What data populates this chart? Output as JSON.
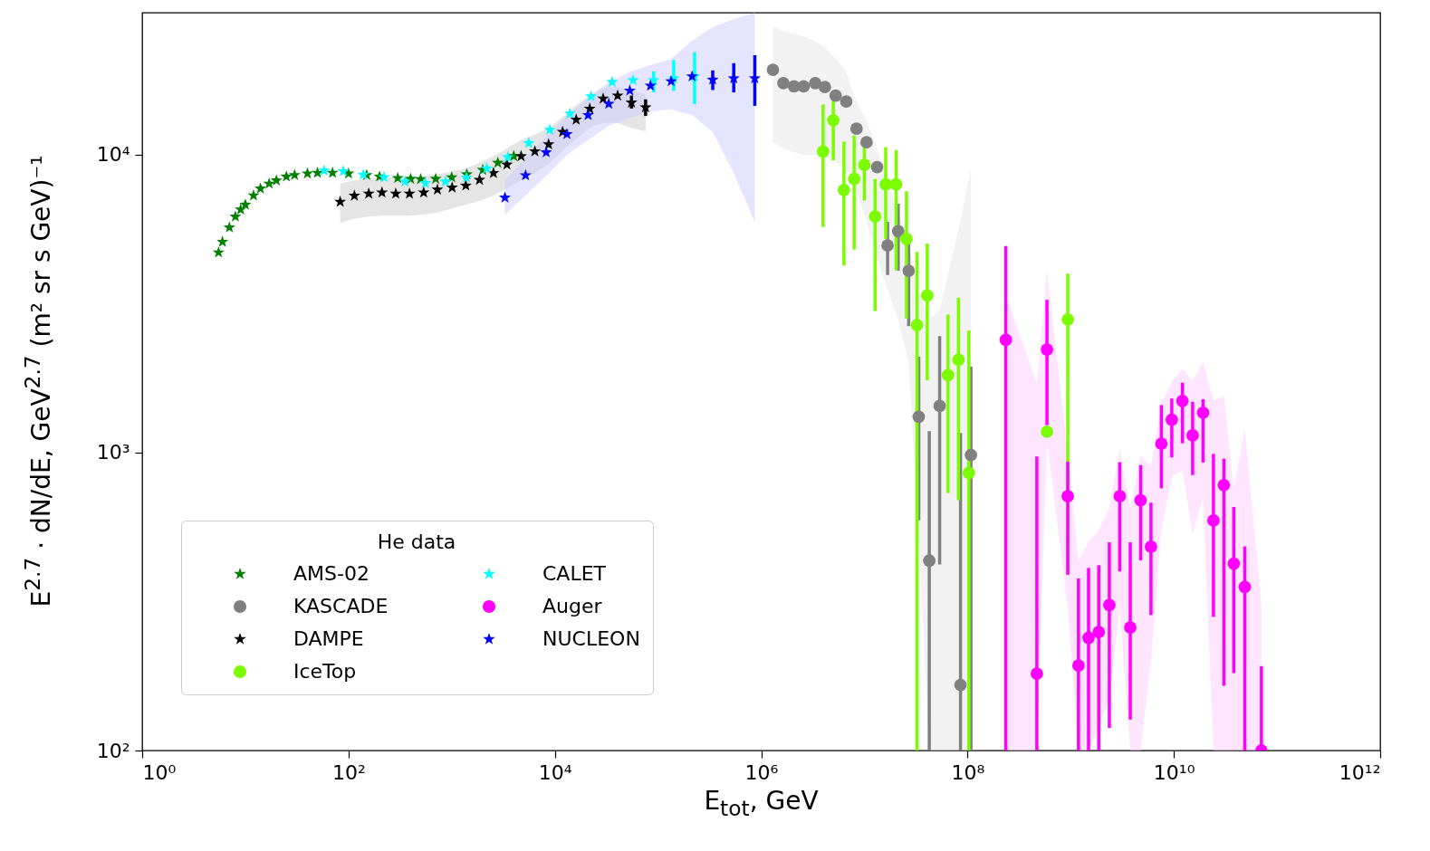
{
  "chart_data": {
    "type": "scatter",
    "xlabel": "E$_{tot}$, GeV",
    "ylabel": "E$^{2.7}$ · dN/dE, GeV$^{2.7}$ (m² sr s GeV)⁻¹",
    "legend_title": "He data",
    "legend": "bottom left",
    "log": "xy",
    "xlim": [
      1,
      1000000000000
    ],
    "ylim": [
      100,
      30000
    ],
    "xticks": [
      {
        "value": 1,
        "label": "10⁰"
      },
      {
        "value": 100,
        "label": "10²"
      },
      {
        "value": 10000,
        "label": "10⁴"
      },
      {
        "value": 1000000,
        "label": "10⁶"
      },
      {
        "value": 100000000,
        "label": "10⁸"
      },
      {
        "value": 10000000000,
        "label": "10¹⁰"
      },
      {
        "value": 1000000000000,
        "label": "10¹²"
      }
    ],
    "yticks": [
      {
        "value": 100,
        "label": "10²"
      },
      {
        "value": 1000,
        "label": "10³"
      },
      {
        "value": 10000,
        "label": "10⁴"
      }
    ],
    "series": [
      {
        "name": "AMS-02",
        "color": "#008000",
        "marker": "star",
        "x": [
          5.5,
          6,
          7,
          8,
          9,
          10,
          12,
          14,
          17,
          20,
          25,
          30,
          40,
          50,
          70,
          100,
          150,
          200,
          300,
          400,
          500,
          700,
          1000,
          1400,
          2000,
          2800,
          4000
        ],
        "values": [
          4700,
          5100,
          5700,
          6200,
          6550,
          6800,
          7300,
          7700,
          8000,
          8200,
          8450,
          8550,
          8650,
          8700,
          8700,
          8650,
          8550,
          8450,
          8350,
          8300,
          8280,
          8300,
          8400,
          8600,
          8900,
          9400,
          9900
        ]
      },
      {
        "name": "DAMPE",
        "color": "#000000",
        "marker": "star",
        "x": [
          83,
          114,
          157,
          211,
          287,
          390,
          535,
          727,
          1010,
          1370,
          1860,
          2540,
          3430,
          4710,
          6400,
          8700,
          11900,
          16100,
          21800,
          29400,
          40600,
          55300,
          75800
        ],
        "values": [
          6950,
          7290,
          7400,
          7470,
          7400,
          7400,
          7470,
          7640,
          7760,
          7880,
          8240,
          8680,
          9270,
          9890,
          10270,
          10840,
          11940,
          13120,
          14270,
          15440,
          15790,
          14970,
          14430
        ],
        "errors": [
          null,
          null,
          null,
          null,
          null,
          null,
          null,
          null,
          null,
          null,
          null,
          null,
          null,
          null,
          null,
          null,
          null,
          null,
          null,
          null,
          null,
          [
            14300,
            15800
          ],
          [
            13500,
            15350
          ]
        ],
        "lower": [
          5900,
          6100,
          6200,
          6250,
          6250,
          6250,
          6300,
          6400,
          6600,
          6800,
          7000,
          7300,
          7700,
          8200,
          8700,
          9300,
          10300,
          11300,
          12300,
          12800,
          12800,
          12300,
          12000
        ],
        "upper": [
          8000,
          8200,
          8300,
          8400,
          8400,
          8400,
          8500,
          8600,
          8800,
          9000,
          9400,
          9900,
          10500,
          11200,
          11700,
          12300,
          13400,
          14700,
          15800,
          16800,
          16900,
          16500,
          16000
        ]
      },
      {
        "name": "CALET",
        "color": "#00ffff",
        "marker": "star",
        "x": [
          58,
          89,
          139,
          221,
          353,
          555,
          870,
          1390,
          2190,
          3500,
          5590,
          8930,
          14000,
          22400,
          35900,
          57300,
          90800,
          142000,
          226000
        ],
        "values": [
          8850,
          8800,
          8570,
          8410,
          8130,
          8030,
          8130,
          8380,
          9000,
          9810,
          10950,
          12130,
          13750,
          15700,
          17550,
          17800,
          17800,
          18050,
          18330
        ],
        "errors": [
          null,
          null,
          null,
          null,
          null,
          null,
          null,
          null,
          null,
          null,
          null,
          null,
          null,
          null,
          null,
          null,
          [
            16200,
            19050
          ],
          [
            16400,
            20800
          ],
          [
            14800,
            22100
          ]
        ]
      },
      {
        "name": "NUCLEON",
        "color": "#0000ff",
        "marker": "star",
        "x": [
          3280,
          5200,
          8240,
          13100,
          21000,
          33300,
          53300,
          84500,
          134000,
          214000,
          339000,
          542000,
          867000
        ],
        "values": [
          7180,
          8530,
          10190,
          11730,
          13580,
          14830,
          16420,
          17050,
          17650,
          18330,
          17870,
          18050,
          18050
        ],
        "errors": [
          null,
          null,
          null,
          null,
          null,
          null,
          null,
          null,
          null,
          null,
          [
            16500,
            19200
          ],
          [
            16200,
            20300
          ],
          [
            14600,
            21600
          ]
        ],
        "lower": [
          6300,
          7300,
          8500,
          10000,
          11200,
          12500,
          13300,
          14000,
          14200,
          13600,
          11900,
          8700,
          5950
        ],
        "upper": [
          8200,
          9800,
          11500,
          13500,
          15500,
          17500,
          19000,
          20000,
          21000,
          24200,
          26800,
          28500,
          30000
        ]
      },
      {
        "name": "KASCADE",
        "color": "#808080",
        "marker": "circle",
        "x": [
          1300000,
          1640000,
          2080000,
          2580000,
          3340000,
          4140000,
          5270000,
          6680000,
          8400000,
          10500000,
          13300000,
          16800000,
          21300000,
          26900000,
          33700000,
          42600000,
          53700000,
          85500000,
          108000000
        ],
        "values": [
          19300,
          17400,
          16980,
          16980,
          17400,
          16880,
          15790,
          15100,
          12240,
          11010,
          9090,
          4960,
          5540,
          4080,
          1320,
          434,
          1435,
          166,
          982
        ],
        "errors": [
          null,
          null,
          null,
          null,
          null,
          null,
          null,
          null,
          null,
          null,
          null,
          [
            3950,
            5960
          ],
          [
            4080,
            6850
          ],
          [
            2660,
            5400
          ],
          [
            593,
            2100
          ],
          [
            100,
            1180
          ],
          [
            421,
            2460
          ],
          [
            100,
            1164
          ],
          [
            100,
            1945
          ]
        ],
        "lower": [
          11000,
          10500,
          10200,
          10000,
          10000,
          9800,
          9500,
          9000,
          7500,
          6000,
          4500,
          3500,
          2800,
          2000,
          500,
          100,
          100,
          100,
          100
        ],
        "upper": [
          27000,
          26000,
          25500,
          25000,
          24000,
          23000,
          21000,
          19000,
          15000,
          13000,
          10500,
          8000,
          6500,
          5000,
          3500,
          2800,
          3000,
          6000,
          9000
        ]
      },
      {
        "name": "IceTop",
        "color": "#7cfc00",
        "marker": "circle",
        "x": [
          3980000,
          5000000,
          6340000,
          7960000,
          10000000,
          12700000,
          16100000,
          20300000,
          25600000,
          32400000,
          40700000,
          64700000,
          81700000,
          103000000,
          589000000,
          938000000
        ],
        "values": [
          10260,
          13060,
          7620,
          8300,
          9250,
          6210,
          7960,
          7960,
          5220,
          2680,
          3370,
          1820,
          2050,
          855,
          1175,
          2800
        ],
        "errors": [
          [
            5720,
            14750
          ],
          [
            9590,
            15350
          ],
          [
            4250,
            11070
          ],
          [
            4810,
            11600
          ],
          [
            7030,
            10700
          ],
          [
            2990,
            8290
          ],
          [
            5220,
            10600
          ],
          [
            4100,
            10380
          ],
          [
            2820,
            7540
          ],
          [
            100,
            4720
          ],
          [
            1750,
            5030
          ],
          [
            731,
            2910
          ],
          [
            692,
            3310
          ],
          [
            100,
            2570
          ],
          null,
          [
            389,
            3990
          ]
        ]
      },
      {
        "name": "Auger",
        "color": "#ff00ff",
        "marker": "circle",
        "x": [
          235000000,
          470000000,
          589000000,
          937000000,
          1190000000,
          1490000000,
          1870000000,
          2370000000,
          2990000000,
          3780000000,
          4760000000,
          6000000000,
          7570000000,
          9550000000,
          12100000000,
          15200000000,
          19200000000,
          24200000000,
          30500000000,
          38100000000,
          48700000000,
          70600000000
        ],
        "values": [
          2390,
          181,
          2220,
          714,
          193,
          239,
          250,
          308,
          714,
          259,
          692,
          483,
          1072,
          1289,
          1492,
          1143,
          1362,
          592,
          778,
          424,
          354,
          100
        ],
        "errors": [
          [
            100,
            4940
          ],
          [
            100,
            970
          ],
          [
            1237,
            3260
          ],
          [
            389,
            933
          ],
          [
            100,
            378
          ],
          [
            100,
            410
          ],
          [
            100,
            419
          ],
          [
            119,
            500
          ],
          [
            399,
            929
          ],
          [
            127,
            500
          ],
          [
            435,
            908
          ],
          [
            285,
            679
          ],
          [
            759,
            1445
          ],
          [
            964,
            1520
          ],
          [
            1076,
            1718
          ],
          [
            841,
            1482
          ],
          [
            927,
            1512
          ],
          [
            281,
            990
          ],
          [
            165,
            953
          ],
          [
            182,
            657
          ],
          [
            100,
            485
          ],
          [
            100,
            192
          ]
        ],
        "lower": [
          100,
          100,
          1100,
          300,
          100,
          100,
          120,
          150,
          300,
          100,
          100,
          200,
          550,
          832,
          873,
          533,
          708,
          100,
          100,
          100,
          100,
          100
        ],
        "upper": [
          3400,
          1700,
          4080,
          1000,
          432,
          500,
          550,
          650,
          1033,
          650,
          980,
          900,
          1466,
          1720,
          1915,
          1740,
          2020,
          1497,
          1550,
          758,
          1197,
          311
        ]
      }
    ]
  }
}
